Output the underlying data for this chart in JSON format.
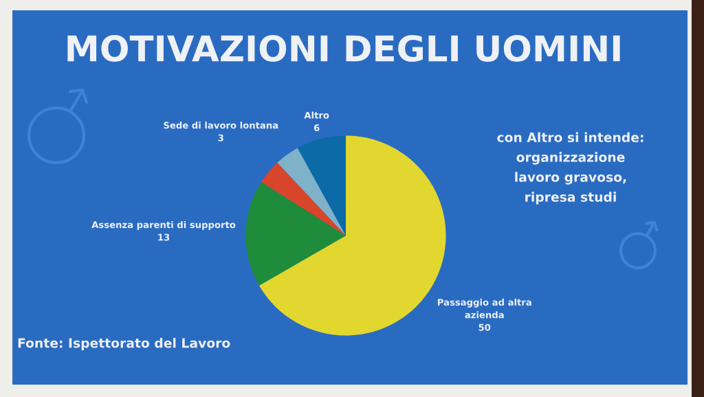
{
  "chart_data": {
    "type": "pie",
    "title": "MOTIVAZIONI DEGLI UOMINI",
    "categories": [
      "Passaggio ad altra\nazienda",
      "Assenza parenti di supporto",
      "Sede di lavoro lontana",
      null,
      "Altro"
    ],
    "values": [
      50,
      13,
      3,
      3,
      6
    ],
    "colors": [
      "#e2d72e",
      "#1f8c3b",
      "#d8452b",
      "#7fb2c9",
      "#0c6aa6"
    ],
    "value_labels": [
      "50",
      "13",
      "3",
      null,
      "6"
    ],
    "annotations": [
      "con Altro si intende:\norganizzazione\nlavoro gravoso,\nripresa studi",
      "Fonte: Ispettorato del Lavoro"
    ]
  }
}
